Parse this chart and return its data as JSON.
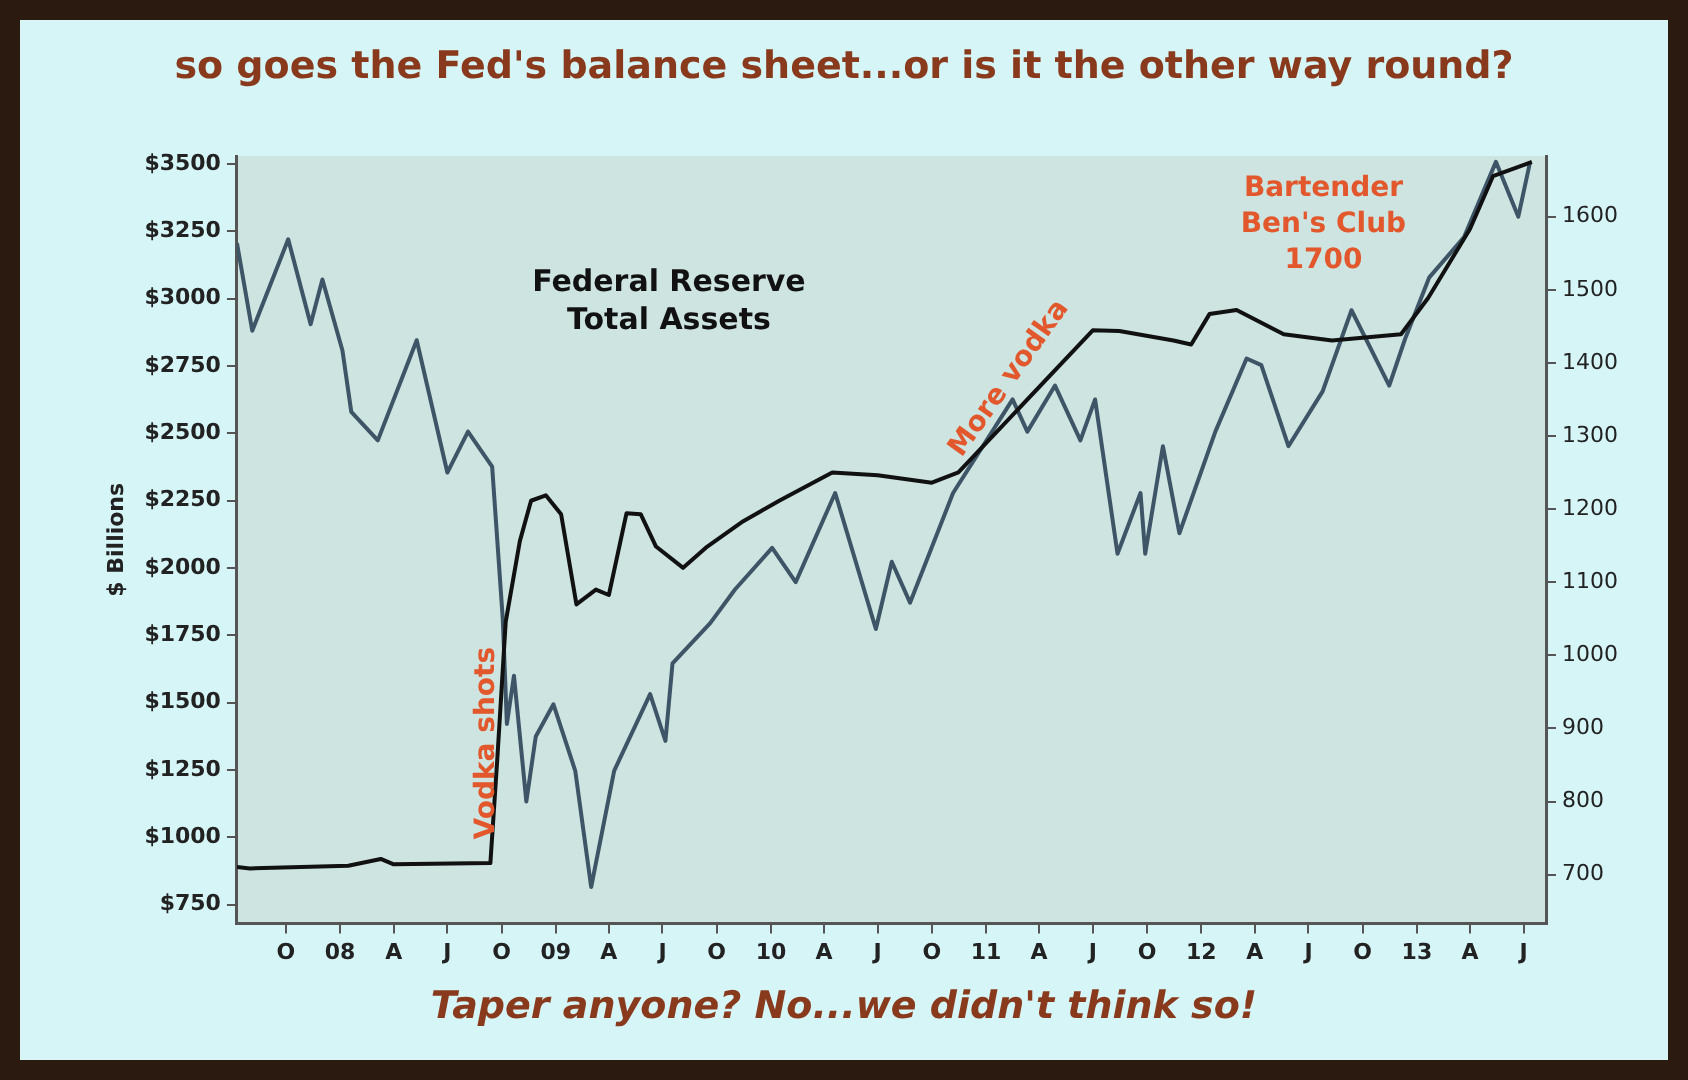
{
  "chart_data": {
    "type": "line",
    "title": "so goes the Fed's balance sheet...or is it the other way round?",
    "ylabel": "$ Billions",
    "xlim": [
      "2007-07-10",
      "2013-08-08"
    ],
    "xticks": [
      {
        "value": "2007-10-01",
        "label": "O"
      },
      {
        "value": "2008-01-01",
        "label": "08"
      },
      {
        "value": "2008-04-01",
        "label": "A"
      },
      {
        "value": "2008-07-01",
        "label": "J"
      },
      {
        "value": "2008-10-01",
        "label": "O"
      },
      {
        "value": "2009-01-01",
        "label": "09"
      },
      {
        "value": "2009-04-01",
        "label": "A"
      },
      {
        "value": "2009-07-01",
        "label": "J"
      },
      {
        "value": "2009-10-01",
        "label": "O"
      },
      {
        "value": "2010-01-01",
        "label": "10"
      },
      {
        "value": "2010-04-01",
        "label": "A"
      },
      {
        "value": "2010-07-01",
        "label": "J"
      },
      {
        "value": "2010-10-01",
        "label": "O"
      },
      {
        "value": "2011-01-01",
        "label": "11"
      },
      {
        "value": "2011-04-01",
        "label": "A"
      },
      {
        "value": "2011-07-01",
        "label": "J"
      },
      {
        "value": "2011-10-01",
        "label": "O"
      },
      {
        "value": "2012-01-01",
        "label": "12"
      },
      {
        "value": "2012-04-01",
        "label": "A"
      },
      {
        "value": "2012-07-01",
        "label": "J"
      },
      {
        "value": "2012-10-01",
        "label": "O"
      },
      {
        "value": "2013-01-01",
        "label": "13"
      },
      {
        "value": "2013-04-01",
        "label": "A"
      },
      {
        "value": "2013-07-01",
        "label": "J"
      }
    ],
    "ylim": [
      680,
      3530
    ],
    "yticks": [
      {
        "value": 750,
        "label": "$750"
      },
      {
        "value": 1000,
        "label": "$1000"
      },
      {
        "value": 1250,
        "label": "$1250"
      },
      {
        "value": 1500,
        "label": "$1500"
      },
      {
        "value": 1750,
        "label": "$1750"
      },
      {
        "value": 2000,
        "label": "$2000"
      },
      {
        "value": 2250,
        "label": "$2250"
      },
      {
        "value": 2500,
        "label": "$2500"
      },
      {
        "value": 2750,
        "label": "$2750"
      },
      {
        "value": 3000,
        "label": "$3000"
      },
      {
        "value": 3250,
        "label": "$3250"
      },
      {
        "value": 3500,
        "label": "$3500"
      }
    ],
    "y2lim": [
      633,
      1683
    ],
    "y2ticks": [
      700,
      800,
      900,
      1000,
      1100,
      1200,
      1300,
      1400,
      1500,
      1600
    ],
    "series": [
      {
        "name": "Federal Reserve Total Assets",
        "color": "#111111",
        "x": [
          "2007-07-10",
          "2007-08-01",
          "2008-01-15",
          "2008-03-10",
          "2008-04-01",
          "2008-09-12",
          "2008-09-24",
          "2008-10-08",
          "2008-11-01",
          "2008-11-20",
          "2008-12-15",
          "2009-01-10",
          "2009-02-05",
          "2009-03-10",
          "2009-04-01",
          "2009-05-01",
          "2009-05-25",
          "2009-06-20",
          "2009-08-05",
          "2009-09-15",
          "2009-11-15",
          "2010-01-15",
          "2010-04-15",
          "2010-07-01",
          "2010-10-01",
          "2010-11-15",
          "2011-07-01",
          "2011-08-15",
          "2011-11-15",
          "2011-12-15",
          "2012-01-15",
          "2012-03-01",
          "2012-05-20",
          "2012-08-10",
          "2012-12-05",
          "2013-01-20",
          "2013-04-01",
          "2013-05-10",
          "2013-07-15"
        ],
        "values": [
          890,
          885,
          895,
          920,
          900,
          905,
          1300,
          1800,
          2100,
          2250,
          2270,
          2200,
          1865,
          1920,
          1900,
          2204,
          2200,
          2080,
          2001,
          2080,
          2174,
          2250,
          2355,
          2345,
          2317,
          2355,
          2883,
          2880,
          2845,
          2830,
          2943,
          2958,
          2868,
          2845,
          2868,
          3003,
          3259,
          3455,
          3508
        ]
      },
      {
        "color": "#3d5566",
        "axis": "y2",
        "x": [
          "2007-07-10",
          "2007-08-05",
          "2007-10-05",
          "2007-11-12",
          "2007-12-02",
          "2008-01-05",
          "2008-01-20",
          "2008-03-05",
          "2008-05-10",
          "2008-07-01",
          "2008-08-05",
          "2008-09-15",
          "2008-10-03",
          "2008-10-10",
          "2008-10-22",
          "2008-11-12",
          "2008-11-28",
          "2008-12-28",
          "2009-02-03",
          "2009-03-02",
          "2009-04-10",
          "2009-06-10",
          "2009-07-06",
          "2009-07-18",
          "2009-09-20",
          "2009-11-01",
          "2010-01-03",
          "2010-02-12",
          "2010-04-20",
          "2010-06-28",
          "2010-07-25",
          "2010-08-25",
          "2010-11-06",
          "2011-02-15",
          "2011-03-12",
          "2011-04-28",
          "2011-06-10",
          "2011-07-05",
          "2011-08-12",
          "2011-09-20",
          "2011-09-28",
          "2011-10-28",
          "2011-11-25",
          "2012-01-25",
          "2012-03-18",
          "2012-04-12",
          "2012-05-28",
          "2012-07-25",
          "2012-09-12",
          "2012-11-15",
          "2012-12-12",
          "2013-01-22",
          "2013-03-22",
          "2013-05-15",
          "2013-06-22",
          "2013-07-12"
        ],
        "values": [
          1564,
          1444,
          1569,
          1453,
          1514,
          1417,
          1333,
          1294,
          1431,
          1250,
          1306,
          1258,
          1050,
          906,
          972,
          800,
          889,
          933,
          842,
          683,
          842,
          947,
          883,
          989,
          1044,
          1090,
          1147,
          1100,
          1222,
          1036,
          1128,
          1072,
          1222,
          1350,
          1306,
          1369,
          1294,
          1350,
          1139,
          1222,
          1139,
          1286,
          1167,
          1306,
          1406,
          1397,
          1286,
          1361,
          1472,
          1369,
          1433,
          1517,
          1572,
          1675,
          1600,
          1675
        ]
      }
    ],
    "annotations": [
      {
        "text": "Vodka shots",
        "x": "2008-09-05",
        "y": 1350
      },
      "More vodka",
      "Bartender Ben's Club 1700",
      "Taper anyone?  No...we didn't think so!"
    ],
    "legend": false,
    "grid": false,
    "marker": "none",
    "line_style": "solid"
  }
}
